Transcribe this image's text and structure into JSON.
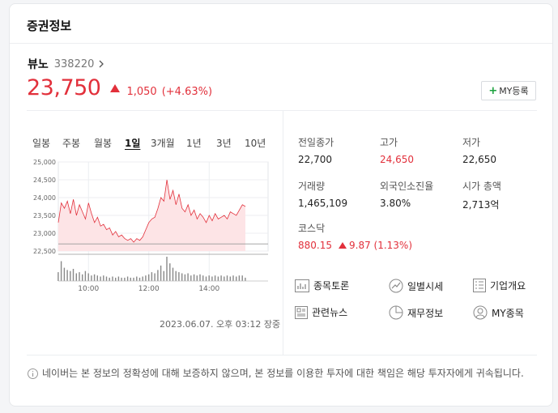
{
  "header": {
    "title": "증권정보"
  },
  "stock": {
    "name": "뷰노",
    "code": "338220",
    "price": "23,750",
    "change": "1,050",
    "change_rate": "(+4.63%)"
  },
  "my_button": {
    "plus": "+",
    "label": "MY등록"
  },
  "periods": [
    "일봉",
    "주봉",
    "월봉",
    "1일",
    "3개월",
    "1년",
    "3년",
    "10년"
  ],
  "active_period": "1일",
  "chart_data": {
    "type": "area",
    "y_ticks": [
      "25,000",
      "24,500",
      "24,000",
      "23,500",
      "23,000",
      "22,500"
    ],
    "x_ticks": [
      "10:00",
      "12:00",
      "14:00"
    ],
    "ylim": [
      22500,
      25000
    ],
    "previous_close": 22700,
    "x": [
      "09:00",
      "09:06",
      "09:12",
      "09:18",
      "09:24",
      "09:30",
      "09:36",
      "09:42",
      "09:48",
      "09:54",
      "10:00",
      "10:06",
      "10:12",
      "10:18",
      "10:24",
      "10:30",
      "10:36",
      "10:42",
      "10:48",
      "10:54",
      "11:00",
      "11:06",
      "11:12",
      "11:18",
      "11:24",
      "11:30",
      "11:36",
      "11:42",
      "11:48",
      "11:54",
      "12:00",
      "12:06",
      "12:12",
      "12:18",
      "12:24",
      "12:30",
      "12:36",
      "12:42",
      "12:48",
      "12:54",
      "13:00",
      "13:06",
      "13:12",
      "13:18",
      "13:24",
      "13:30",
      "13:36",
      "13:42",
      "13:48",
      "13:54",
      "14:00",
      "14:06",
      "14:12",
      "14:18",
      "14:24",
      "14:30",
      "14:36",
      "14:42",
      "14:48",
      "14:54",
      "15:00",
      "15:06",
      "15:12"
    ],
    "price": [
      23300,
      23850,
      23700,
      23900,
      23550,
      23950,
      23500,
      23800,
      23600,
      23400,
      23850,
      23550,
      23300,
      23450,
      23200,
      23250,
      23100,
      23150,
      22950,
      23050,
      22900,
      22950,
      22850,
      22800,
      22850,
      22750,
      22850,
      22800,
      22900,
      23100,
      23300,
      23400,
      23450,
      23700,
      24000,
      23900,
      24500,
      23950,
      24200,
      23800,
      24100,
      23700,
      23600,
      23800,
      23500,
      23650,
      23400,
      23550,
      23450,
      23300,
      23500,
      23350,
      23550,
      23400,
      23450,
      23500,
      23400,
      23600,
      23550,
      23500,
      23650,
      23800,
      23750
    ],
    "volume": [
      8,
      18,
      12,
      10,
      9,
      11,
      7,
      8,
      6,
      9,
      7,
      5,
      6,
      5,
      4,
      5,
      4,
      3,
      4,
      3,
      4,
      3,
      3,
      4,
      3,
      3,
      4,
      3,
      4,
      5,
      6,
      8,
      7,
      10,
      14,
      9,
      22,
      16,
      12,
      9,
      8,
      7,
      6,
      7,
      5,
      6,
      5,
      6,
      5,
      4,
      5,
      4,
      5,
      4,
      5,
      4,
      5,
      4,
      5,
      4,
      5,
      5,
      3
    ]
  },
  "timestamp": "2023.06.07. 오후 03:12 장중",
  "stats": {
    "prev_close": {
      "label": "전일종가",
      "value": "22,700"
    },
    "high": {
      "label": "고가",
      "value": "24,650"
    },
    "low": {
      "label": "저가",
      "value": "22,650"
    },
    "volume": {
      "label": "거래량",
      "value": "1,465,109"
    },
    "foreign_rate": {
      "label": "외국인소진율",
      "value": "3.80%"
    },
    "market_cap": {
      "label": "시가 총액",
      "value": "2,713억"
    },
    "kosdaq": {
      "label": "코스닥",
      "value": "880.15",
      "change": "9.87 (1.13%)"
    }
  },
  "links": [
    {
      "label": "종목토론",
      "icon": "discussion-chart-icon"
    },
    {
      "label": "일별시세",
      "icon": "trend-circle-icon"
    },
    {
      "label": "기업개요",
      "icon": "document-list-icon"
    },
    {
      "label": "관련뉴스",
      "icon": "news-icon"
    },
    {
      "label": "재무정보",
      "icon": "pie-chart-icon"
    },
    {
      "label": "MY종목",
      "icon": "user-circle-icon"
    }
  ],
  "notice": "네이버는 본 정보의 정확성에 대해 보증하지 않으며, 본 정보를 이용한 투자에 대한 책임은 해당 투자자에게 귀속됩니다."
}
